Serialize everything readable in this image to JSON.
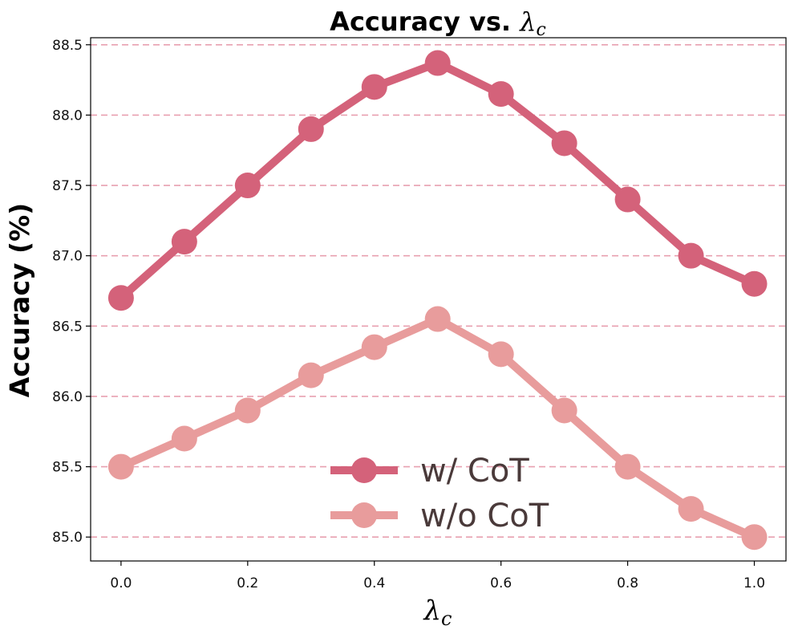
{
  "chart_data": {
    "type": "line",
    "title": "Accuracy vs. ",
    "title_symbol": "λ",
    "title_subscript": "c",
    "xlabel_symbol": "λ",
    "xlabel_subscript": "c",
    "ylabel": "Accuracy (%)",
    "x": [
      0.0,
      0.1,
      0.2,
      0.3,
      0.4,
      0.5,
      0.6,
      0.7,
      0.8,
      0.9,
      1.0
    ],
    "xticks": [
      "0.0",
      "0.2",
      "0.4",
      "0.6",
      "0.8",
      "1.0"
    ],
    "yticks": [
      "85.0",
      "85.5",
      "86.0",
      "86.5",
      "87.0",
      "87.5",
      "88.0",
      "88.5"
    ],
    "xlim": [
      -0.048,
      1.05
    ],
    "ylim": [
      84.83,
      88.55
    ],
    "grid": "horizontal dashed",
    "legend_position": "lower-center",
    "series": [
      {
        "name": "w/ CoT",
        "color": "#d4627a",
        "values": [
          86.7,
          87.1,
          87.5,
          87.9,
          88.2,
          88.37,
          88.15,
          87.8,
          87.4,
          87.0,
          86.8
        ]
      },
      {
        "name": "w/o CoT",
        "color": "#e89c9c",
        "values": [
          85.5,
          85.7,
          85.9,
          86.15,
          86.35,
          86.55,
          86.3,
          85.9,
          85.5,
          85.2,
          85.0
        ]
      }
    ],
    "grid_color": "#e8a0b0"
  }
}
